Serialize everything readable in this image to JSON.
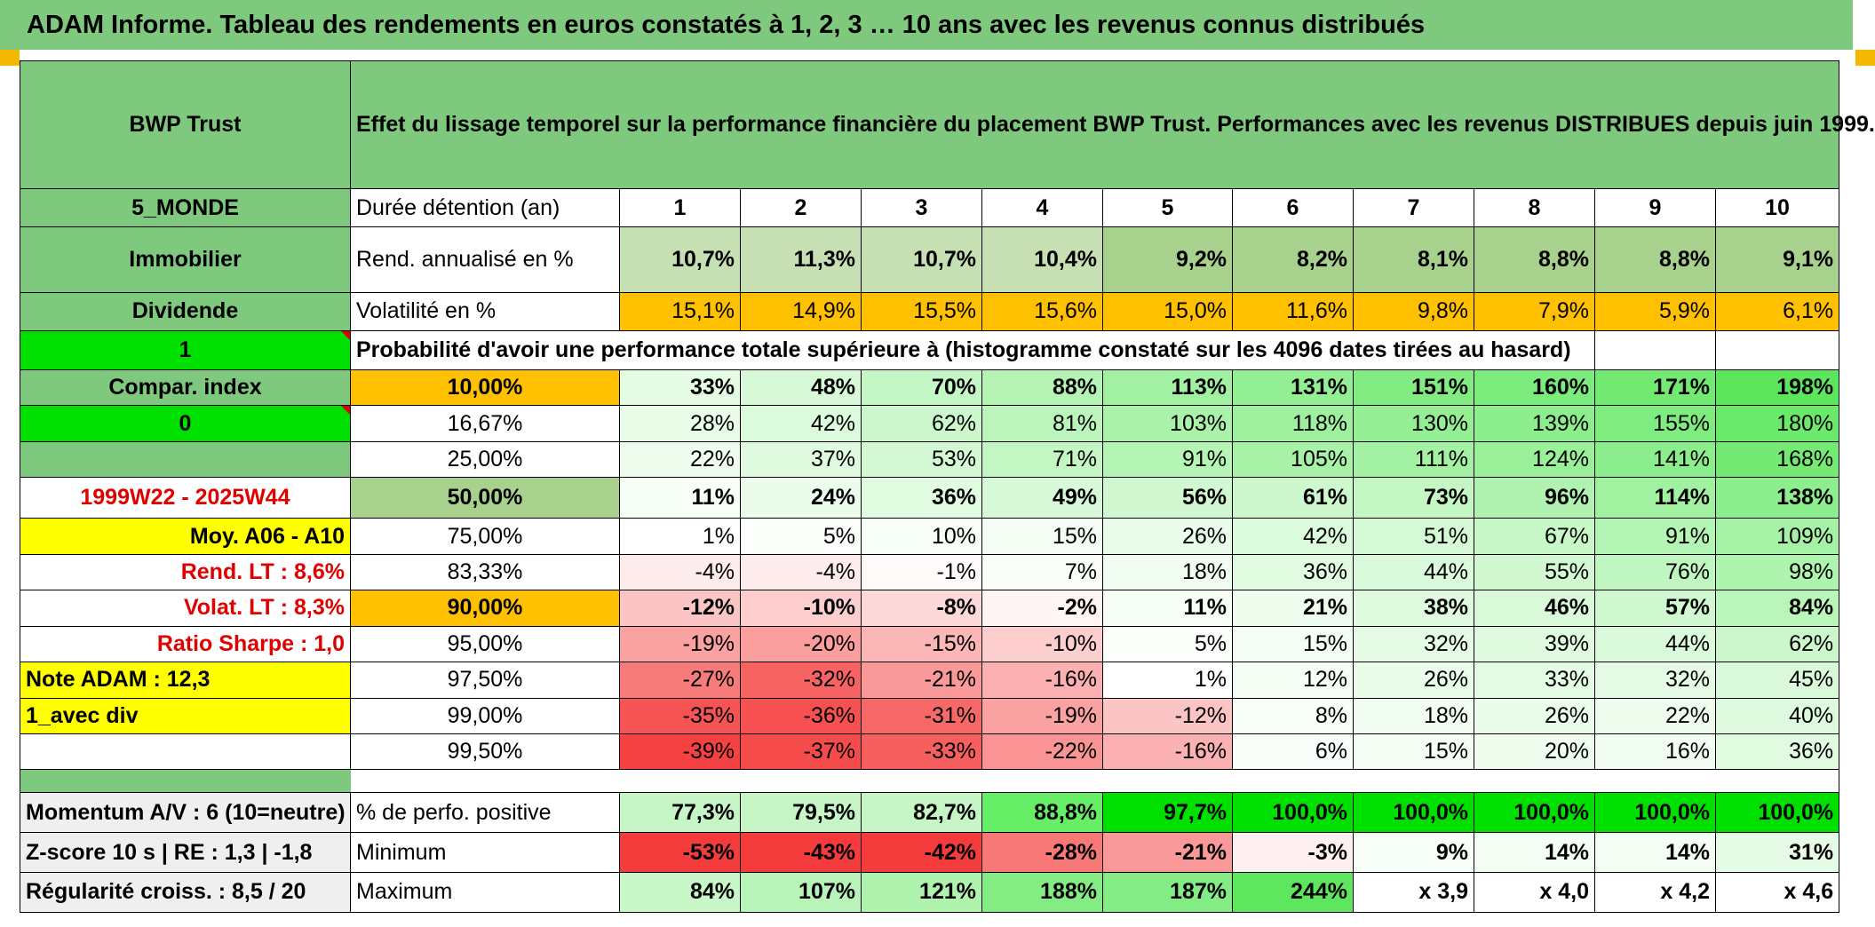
{
  "title": "ADAM Informe. Tableau des rendements en euros constatés à 1, 2, 3 … 10 ans avec les revenus connus distribués",
  "colors": {
    "header_green": "#7fc97f",
    "bright_green": "#00e000",
    "yellow": "#ffff00",
    "orange": "#ffc000",
    "red_text": "#e00000"
  },
  "fund": {
    "name": "BWP Trust",
    "description": "Effet du lissage temporel sur la performance financière du placement BWP Trust. Performances avec les revenus DISTRIBUES depuis juin 1999.",
    "zone": "5_MONDE",
    "category": "Immobilier",
    "type": "Dividende",
    "one": "1",
    "compar_index": "Compar. index",
    "zero": "0",
    "period": "1999W22 - 2025W44",
    "moy": "Moy. A06 - A10",
    "rend_lt": "Rend. LT :   8,6%",
    "volat_lt": "Volat. LT :   8,3%",
    "sharpe": "Ratio Sharpe :    1,0",
    "note": "Note ADAM : 12,3",
    "avec_div": "1_avec div"
  },
  "horizon": {
    "label": "Durée détention (an)",
    "years": [
      "1",
      "2",
      "3",
      "4",
      "5",
      "6",
      "7",
      "8",
      "9",
      "10"
    ]
  },
  "rend": {
    "label": "Rend. annualisé en %",
    "values": [
      "10,7%",
      "11,3%",
      "10,7%",
      "10,4%",
      "9,2%",
      "8,2%",
      "8,1%",
      "8,8%",
      "8,8%",
      "9,1%"
    ]
  },
  "volat": {
    "label": "Volatilité en %",
    "values": [
      "15,1%",
      "14,9%",
      "15,5%",
      "15,6%",
      "15,0%",
      "11,6%",
      "9,8%",
      "7,9%",
      "5,9%",
      "6,1%"
    ]
  },
  "prob_header": "Probabilité d'avoir une performance totale supérieure à (histogramme constaté sur les 4096 dates tirées au hasard)",
  "prob_rows": [
    {
      "pct": "10,00%",
      "values": [
        "33%",
        "48%",
        "70%",
        "88%",
        "113%",
        "131%",
        "151%",
        "160%",
        "171%",
        "198%"
      ]
    },
    {
      "pct": "16,67%",
      "values": [
        "28%",
        "42%",
        "62%",
        "81%",
        "103%",
        "118%",
        "130%",
        "139%",
        "155%",
        "180%"
      ]
    },
    {
      "pct": "25,00%",
      "values": [
        "22%",
        "37%",
        "53%",
        "71%",
        "91%",
        "105%",
        "111%",
        "124%",
        "141%",
        "168%"
      ]
    },
    {
      "pct": "50,00%",
      "values": [
        "11%",
        "24%",
        "36%",
        "49%",
        "56%",
        "61%",
        "73%",
        "96%",
        "114%",
        "138%"
      ]
    },
    {
      "pct": "75,00%",
      "values": [
        "1%",
        "5%",
        "10%",
        "15%",
        "26%",
        "42%",
        "51%",
        "67%",
        "91%",
        "109%"
      ]
    },
    {
      "pct": "83,33%",
      "values": [
        "-4%",
        "-4%",
        "-1%",
        "7%",
        "18%",
        "36%",
        "44%",
        "55%",
        "76%",
        "98%"
      ]
    },
    {
      "pct": "90,00%",
      "values": [
        "-12%",
        "-10%",
        "-8%",
        "-2%",
        "11%",
        "21%",
        "38%",
        "46%",
        "57%",
        "84%"
      ]
    },
    {
      "pct": "95,00%",
      "values": [
        "-19%",
        "-20%",
        "-15%",
        "-10%",
        "5%",
        "15%",
        "32%",
        "39%",
        "44%",
        "62%"
      ]
    },
    {
      "pct": "97,50%",
      "values": [
        "-27%",
        "-32%",
        "-21%",
        "-16%",
        "1%",
        "12%",
        "26%",
        "33%",
        "32%",
        "45%"
      ]
    },
    {
      "pct": "99,00%",
      "values": [
        "-35%",
        "-36%",
        "-31%",
        "-19%",
        "-12%",
        "8%",
        "18%",
        "26%",
        "22%",
        "40%"
      ]
    },
    {
      "pct": "99,50%",
      "values": [
        "-39%",
        "-37%",
        "-33%",
        "-22%",
        "-16%",
        "6%",
        "15%",
        "20%",
        "16%",
        "36%"
      ]
    }
  ],
  "stats": [
    {
      "left": "Momentum A/V : 6 (10=neutre)",
      "label": "% de perfo. positive",
      "values": [
        "77,3%",
        "79,5%",
        "82,7%",
        "88,8%",
        "97,7%",
        "100,0%",
        "100,0%",
        "100,0%",
        "100,0%",
        "100,0%"
      ]
    },
    {
      "left": "Z-score 10 s | RE : 1,3 | -1,8",
      "label": "Minimum",
      "values": [
        "-53%",
        "-43%",
        "-42%",
        "-28%",
        "-21%",
        "-3%",
        "9%",
        "14%",
        "14%",
        "31%"
      ]
    },
    {
      "left": "Régularité croiss. : 8,5 / 20",
      "label": "Maximum",
      "values": [
        "84%",
        "107%",
        "121%",
        "188%",
        "187%",
        "244%",
        "x 3,9",
        "x 4,0",
        "x 4,2",
        "x 4,6"
      ]
    }
  ]
}
